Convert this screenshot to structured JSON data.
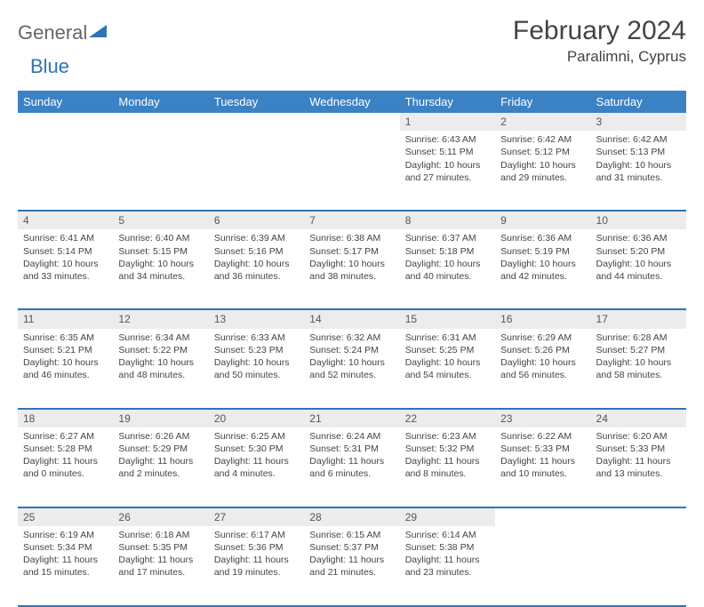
{
  "logo": {
    "word1": "General",
    "word2": "Blue",
    "accent_color": "#2f74b5"
  },
  "title": "February 2024",
  "location": "Paralimni, Cyprus",
  "header_bg": "#3b82c4",
  "header_fg": "#ffffff",
  "daynum_bg": "#ececec",
  "rule_color": "#2f74b5",
  "weekdays": [
    "Sunday",
    "Monday",
    "Tuesday",
    "Wednesday",
    "Thursday",
    "Friday",
    "Saturday"
  ],
  "weeks": [
    [
      null,
      null,
      null,
      null,
      {
        "n": "1",
        "sr": "Sunrise: 6:43 AM",
        "ss": "Sunset: 5:11 PM",
        "d1": "Daylight: 10 hours",
        "d2": "and 27 minutes."
      },
      {
        "n": "2",
        "sr": "Sunrise: 6:42 AM",
        "ss": "Sunset: 5:12 PM",
        "d1": "Daylight: 10 hours",
        "d2": "and 29 minutes."
      },
      {
        "n": "3",
        "sr": "Sunrise: 6:42 AM",
        "ss": "Sunset: 5:13 PM",
        "d1": "Daylight: 10 hours",
        "d2": "and 31 minutes."
      }
    ],
    [
      {
        "n": "4",
        "sr": "Sunrise: 6:41 AM",
        "ss": "Sunset: 5:14 PM",
        "d1": "Daylight: 10 hours",
        "d2": "and 33 minutes."
      },
      {
        "n": "5",
        "sr": "Sunrise: 6:40 AM",
        "ss": "Sunset: 5:15 PM",
        "d1": "Daylight: 10 hours",
        "d2": "and 34 minutes."
      },
      {
        "n": "6",
        "sr": "Sunrise: 6:39 AM",
        "ss": "Sunset: 5:16 PM",
        "d1": "Daylight: 10 hours",
        "d2": "and 36 minutes."
      },
      {
        "n": "7",
        "sr": "Sunrise: 6:38 AM",
        "ss": "Sunset: 5:17 PM",
        "d1": "Daylight: 10 hours",
        "d2": "and 38 minutes."
      },
      {
        "n": "8",
        "sr": "Sunrise: 6:37 AM",
        "ss": "Sunset: 5:18 PM",
        "d1": "Daylight: 10 hours",
        "d2": "and 40 minutes."
      },
      {
        "n": "9",
        "sr": "Sunrise: 6:36 AM",
        "ss": "Sunset: 5:19 PM",
        "d1": "Daylight: 10 hours",
        "d2": "and 42 minutes."
      },
      {
        "n": "10",
        "sr": "Sunrise: 6:36 AM",
        "ss": "Sunset: 5:20 PM",
        "d1": "Daylight: 10 hours",
        "d2": "and 44 minutes."
      }
    ],
    [
      {
        "n": "11",
        "sr": "Sunrise: 6:35 AM",
        "ss": "Sunset: 5:21 PM",
        "d1": "Daylight: 10 hours",
        "d2": "and 46 minutes."
      },
      {
        "n": "12",
        "sr": "Sunrise: 6:34 AM",
        "ss": "Sunset: 5:22 PM",
        "d1": "Daylight: 10 hours",
        "d2": "and 48 minutes."
      },
      {
        "n": "13",
        "sr": "Sunrise: 6:33 AM",
        "ss": "Sunset: 5:23 PM",
        "d1": "Daylight: 10 hours",
        "d2": "and 50 minutes."
      },
      {
        "n": "14",
        "sr": "Sunrise: 6:32 AM",
        "ss": "Sunset: 5:24 PM",
        "d1": "Daylight: 10 hours",
        "d2": "and 52 minutes."
      },
      {
        "n": "15",
        "sr": "Sunrise: 6:31 AM",
        "ss": "Sunset: 5:25 PM",
        "d1": "Daylight: 10 hours",
        "d2": "and 54 minutes."
      },
      {
        "n": "16",
        "sr": "Sunrise: 6:29 AM",
        "ss": "Sunset: 5:26 PM",
        "d1": "Daylight: 10 hours",
        "d2": "and 56 minutes."
      },
      {
        "n": "17",
        "sr": "Sunrise: 6:28 AM",
        "ss": "Sunset: 5:27 PM",
        "d1": "Daylight: 10 hours",
        "d2": "and 58 minutes."
      }
    ],
    [
      {
        "n": "18",
        "sr": "Sunrise: 6:27 AM",
        "ss": "Sunset: 5:28 PM",
        "d1": "Daylight: 11 hours",
        "d2": "and 0 minutes."
      },
      {
        "n": "19",
        "sr": "Sunrise: 6:26 AM",
        "ss": "Sunset: 5:29 PM",
        "d1": "Daylight: 11 hours",
        "d2": "and 2 minutes."
      },
      {
        "n": "20",
        "sr": "Sunrise: 6:25 AM",
        "ss": "Sunset: 5:30 PM",
        "d1": "Daylight: 11 hours",
        "d2": "and 4 minutes."
      },
      {
        "n": "21",
        "sr": "Sunrise: 6:24 AM",
        "ss": "Sunset: 5:31 PM",
        "d1": "Daylight: 11 hours",
        "d2": "and 6 minutes."
      },
      {
        "n": "22",
        "sr": "Sunrise: 6:23 AM",
        "ss": "Sunset: 5:32 PM",
        "d1": "Daylight: 11 hours",
        "d2": "and 8 minutes."
      },
      {
        "n": "23",
        "sr": "Sunrise: 6:22 AM",
        "ss": "Sunset: 5:33 PM",
        "d1": "Daylight: 11 hours",
        "d2": "and 10 minutes."
      },
      {
        "n": "24",
        "sr": "Sunrise: 6:20 AM",
        "ss": "Sunset: 5:33 PM",
        "d1": "Daylight: 11 hours",
        "d2": "and 13 minutes."
      }
    ],
    [
      {
        "n": "25",
        "sr": "Sunrise: 6:19 AM",
        "ss": "Sunset: 5:34 PM",
        "d1": "Daylight: 11 hours",
        "d2": "and 15 minutes."
      },
      {
        "n": "26",
        "sr": "Sunrise: 6:18 AM",
        "ss": "Sunset: 5:35 PM",
        "d1": "Daylight: 11 hours",
        "d2": "and 17 minutes."
      },
      {
        "n": "27",
        "sr": "Sunrise: 6:17 AM",
        "ss": "Sunset: 5:36 PM",
        "d1": "Daylight: 11 hours",
        "d2": "and 19 minutes."
      },
      {
        "n": "28",
        "sr": "Sunrise: 6:15 AM",
        "ss": "Sunset: 5:37 PM",
        "d1": "Daylight: 11 hours",
        "d2": "and 21 minutes."
      },
      {
        "n": "29",
        "sr": "Sunrise: 6:14 AM",
        "ss": "Sunset: 5:38 PM",
        "d1": "Daylight: 11 hours",
        "d2": "and 23 minutes."
      },
      null,
      null
    ]
  ]
}
